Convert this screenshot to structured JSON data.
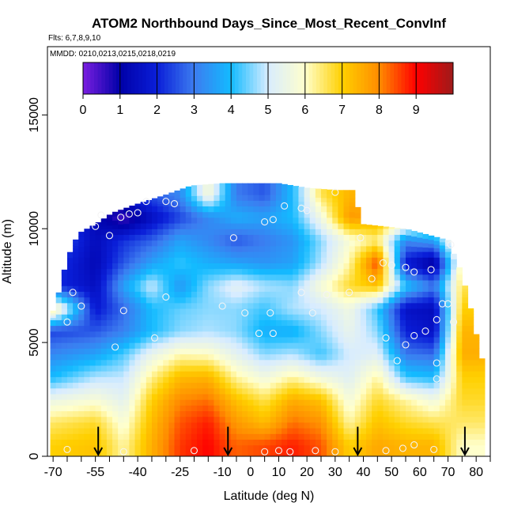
{
  "chart_data": {
    "type": "heatmap",
    "title": "ATOM2 Northbound Days_Since_Most_Recent_ConvInf",
    "subtitle_flights": "Flts: 6,7,8,9,10",
    "subtitle_dates": "MMDD: 0210,0213,0215,0218,0219",
    "xlabel": "Latitude (deg N)",
    "ylabel": "Altitude (m)",
    "xlim": [
      -72,
      85
    ],
    "ylim": [
      0,
      18000
    ],
    "x_ticks": [
      -70,
      -55,
      -40,
      -25,
      -10,
      0,
      10,
      20,
      30,
      40,
      50,
      60,
      70,
      80
    ],
    "x_minor_ticks": [
      -65,
      -60,
      -50,
      -45,
      -35,
      -30,
      -20,
      -15,
      -5,
      5,
      15,
      25,
      35,
      45,
      55,
      65,
      75,
      85
    ],
    "y_ticks": [
      0,
      5000,
      10000,
      15000
    ],
    "colorbar": {
      "min": 0,
      "max": 10,
      "ticks": [
        0,
        1,
        2,
        3,
        4,
        5,
        6,
        7,
        8,
        9
      ],
      "stops": [
        "#7b1fe0",
        "#0000a8",
        "#0a1ed8",
        "#3c7cf0",
        "#13bbff",
        "#d8ecff",
        "#ffffcc",
        "#ffd000",
        "#ff8c00",
        "#ff0000",
        "#9e1a1a"
      ]
    },
    "profile_arrows_lat": [
      -54,
      -8,
      38,
      76
    ],
    "envelope_top": [
      [
        -71,
        6000
      ],
      [
        -68,
        7200
      ],
      [
        -65,
        8700
      ],
      [
        -61,
        9800
      ],
      [
        -55,
        10200
      ],
      [
        -49,
        10700
      ],
      [
        -40,
        11100
      ],
      [
        -30,
        11500
      ],
      [
        -21,
        11900
      ],
      [
        -10,
        12000
      ],
      [
        0,
        12000
      ],
      [
        10,
        12000
      ],
      [
        20,
        11800
      ],
      [
        30,
        11700
      ],
      [
        36,
        11700
      ],
      [
        40,
        10200
      ],
      [
        55,
        10000
      ],
      [
        64,
        9700
      ],
      [
        70,
        9500
      ],
      [
        75,
        8000
      ],
      [
        78,
        6500
      ],
      [
        81,
        4800
      ],
      [
        83,
        3800
      ],
      [
        82,
        2500
      ],
      [
        80,
        1200
      ],
      [
        78,
        400
      ],
      [
        76,
        0
      ]
    ],
    "envelope_bottom_left": [
      -68,
      0
    ],
    "value_bands": [
      {
        "alt": 500,
        "points": [
          [
            -70,
            7
          ],
          [
            -55,
            7.2
          ],
          [
            -45,
            6.2
          ],
          [
            -35,
            7.5
          ],
          [
            -25,
            8.6
          ],
          [
            -15,
            9
          ],
          [
            -5,
            8.3
          ],
          [
            5,
            8.5
          ],
          [
            15,
            8.8
          ],
          [
            25,
            8.4
          ],
          [
            35,
            7
          ],
          [
            45,
            7.6
          ],
          [
            55,
            7.4
          ],
          [
            65,
            7.4
          ],
          [
            75,
            6
          ]
        ]
      },
      {
        "alt": 1500,
        "points": [
          [
            -70,
            6.5
          ],
          [
            -55,
            6.8
          ],
          [
            -45,
            5.8
          ],
          [
            -35,
            7.3
          ],
          [
            -25,
            8.4
          ],
          [
            -15,
            8.8
          ],
          [
            -5,
            7.8
          ],
          [
            5,
            7.3
          ],
          [
            15,
            8.2
          ],
          [
            25,
            7.9
          ],
          [
            35,
            6.2
          ],
          [
            45,
            7.2
          ],
          [
            55,
            6.8
          ],
          [
            65,
            6.6
          ],
          [
            75,
            6.5
          ]
        ]
      },
      {
        "alt": 2500,
        "points": [
          [
            -70,
            5.5
          ],
          [
            -55,
            5.8
          ],
          [
            -45,
            5.3
          ],
          [
            -35,
            7
          ],
          [
            -25,
            8
          ],
          [
            -15,
            8.2
          ],
          [
            -5,
            7.2
          ],
          [
            5,
            6.6
          ],
          [
            15,
            7.5
          ],
          [
            25,
            7.2
          ],
          [
            35,
            5.7
          ],
          [
            45,
            6.8
          ],
          [
            55,
            6.2
          ],
          [
            65,
            5.6
          ],
          [
            75,
            6.8
          ]
        ]
      },
      {
        "alt": 3500,
        "points": [
          [
            -70,
            4
          ],
          [
            -55,
            4.8
          ],
          [
            -45,
            4.9
          ],
          [
            -35,
            6.3
          ],
          [
            -25,
            7.3
          ],
          [
            -15,
            7.4
          ],
          [
            -5,
            6.2
          ],
          [
            5,
            5.6
          ],
          [
            15,
            6.2
          ],
          [
            25,
            5.6
          ],
          [
            35,
            5.2
          ],
          [
            45,
            6.2
          ],
          [
            55,
            4.2
          ],
          [
            65,
            4
          ],
          [
            75,
            7
          ]
        ]
      },
      {
        "alt": 4500,
        "points": [
          [
            -70,
            3.2
          ],
          [
            -55,
            3.6
          ],
          [
            -45,
            4.3
          ],
          [
            -35,
            5.4
          ],
          [
            -25,
            6.1
          ],
          [
            -15,
            6
          ],
          [
            -5,
            5.3
          ],
          [
            5,
            4.6
          ],
          [
            15,
            4.8
          ],
          [
            25,
            4.2
          ],
          [
            35,
            5
          ],
          [
            45,
            5.2
          ],
          [
            55,
            3
          ],
          [
            65,
            2.8
          ],
          [
            75,
            7.5
          ]
        ]
      },
      {
        "alt": 5500,
        "points": [
          [
            -70,
            2.4
          ],
          [
            -55,
            2.6
          ],
          [
            -45,
            3.1
          ],
          [
            -35,
            4
          ],
          [
            -25,
            4.6
          ],
          [
            -15,
            4.8
          ],
          [
            -5,
            4.6
          ],
          [
            5,
            3.8
          ],
          [
            15,
            3.8
          ],
          [
            25,
            4.6
          ],
          [
            35,
            5.4
          ],
          [
            45,
            4.6
          ],
          [
            55,
            2
          ],
          [
            65,
            1.6
          ],
          [
            75,
            7.4
          ]
        ]
      },
      {
        "alt": 6500,
        "points": [
          [
            -70,
            6.6
          ],
          [
            -55,
            1.8
          ],
          [
            -45,
            2.8
          ],
          [
            -35,
            4
          ],
          [
            -25,
            4.4
          ],
          [
            -15,
            4.6
          ],
          [
            -5,
            4.6
          ],
          [
            5,
            4.2
          ],
          [
            15,
            4.8
          ],
          [
            25,
            5
          ],
          [
            35,
            5.6
          ],
          [
            45,
            4.2
          ],
          [
            55,
            1.6
          ],
          [
            65,
            1.4
          ],
          [
            75,
            7
          ]
        ]
      },
      {
        "alt": 7500,
        "points": [
          [
            -70,
            2.2
          ],
          [
            -55,
            1.5
          ],
          [
            -45,
            3.6
          ],
          [
            -35,
            5
          ],
          [
            -25,
            3.4
          ],
          [
            -15,
            4.6
          ],
          [
            -5,
            5.3
          ],
          [
            5,
            4.8
          ],
          [
            15,
            4.6
          ],
          [
            25,
            5.8
          ],
          [
            35,
            6.8
          ],
          [
            45,
            7.2
          ],
          [
            55,
            4.2
          ],
          [
            65,
            3
          ],
          [
            75,
            6.6
          ]
        ]
      },
      {
        "alt": 8500,
        "points": [
          [
            -70,
            2.4
          ],
          [
            -55,
            1.3
          ],
          [
            -45,
            2.6
          ],
          [
            -35,
            3.6
          ],
          [
            -25,
            4.2
          ],
          [
            -15,
            3.8
          ],
          [
            -5,
            3.6
          ],
          [
            5,
            3.4
          ],
          [
            15,
            3.6
          ],
          [
            25,
            4.8
          ],
          [
            35,
            6.2
          ],
          [
            45,
            8.6
          ],
          [
            55,
            1.8
          ],
          [
            65,
            0.8
          ],
          [
            75,
            6.4
          ]
        ]
      },
      {
        "alt": 9500,
        "points": [
          [
            -70,
            3
          ],
          [
            -55,
            1.4
          ],
          [
            -45,
            2.2
          ],
          [
            -35,
            2.7
          ],
          [
            -25,
            3.6
          ],
          [
            -15,
            3.2
          ],
          [
            -5,
            2.6
          ],
          [
            5,
            3
          ],
          [
            15,
            3.4
          ],
          [
            25,
            4.6
          ],
          [
            35,
            5.8
          ],
          [
            45,
            6.4
          ],
          [
            55,
            3.2
          ],
          [
            65,
            3.6
          ],
          [
            75,
            7
          ]
        ]
      },
      {
        "alt": 10500,
        "points": [
          [
            -70,
            3
          ],
          [
            -55,
            1.3
          ],
          [
            -45,
            0.4
          ],
          [
            -35,
            1.5
          ],
          [
            -25,
            2.4
          ],
          [
            -15,
            3.2
          ],
          [
            -5,
            3.8
          ],
          [
            5,
            3.6
          ],
          [
            15,
            4
          ],
          [
            25,
            5.6
          ],
          [
            35,
            7.8
          ],
          [
            45,
            7.6
          ],
          [
            55,
            7
          ],
          [
            65,
            7
          ],
          [
            75,
            7
          ]
        ]
      },
      {
        "alt": 11500,
        "points": [
          [
            -70,
            3
          ],
          [
            -55,
            1.6
          ],
          [
            -45,
            2
          ],
          [
            -35,
            2.6
          ],
          [
            -25,
            3.2
          ],
          [
            -15,
            5.8
          ],
          [
            -5,
            3
          ],
          [
            5,
            2.6
          ],
          [
            15,
            4
          ],
          [
            25,
            6.6
          ],
          [
            35,
            7.4
          ],
          [
            45,
            7.4
          ],
          [
            55,
            7
          ],
          [
            65,
            7
          ],
          [
            75,
            7
          ]
        ]
      }
    ],
    "observation_points": [
      [
        -55,
        10100
      ],
      [
        -53,
        10600
      ],
      [
        -50,
        9700
      ],
      [
        -46,
        10500
      ],
      [
        -43,
        10650
      ],
      [
        -40,
        10700
      ],
      [
        -37,
        11200
      ],
      [
        -30,
        11200
      ],
      [
        -27,
        11100
      ],
      [
        -63,
        7200
      ],
      [
        -60,
        6600
      ],
      [
        -65,
        5900
      ],
      [
        -45,
        6400
      ],
      [
        -48,
        4800
      ],
      [
        -34,
        5200
      ],
      [
        -30,
        7000
      ],
      [
        -10,
        6600
      ],
      [
        -6,
        9600
      ],
      [
        5,
        10300
      ],
      [
        8,
        10400
      ],
      [
        12,
        11000
      ],
      [
        18,
        10900
      ],
      [
        20,
        10800
      ],
      [
        30,
        11600
      ],
      [
        39,
        9600
      ],
      [
        47,
        8500
      ],
      [
        50,
        8400
      ],
      [
        55,
        8300
      ],
      [
        58,
        8100
      ],
      [
        64,
        8200
      ],
      [
        71,
        9300
      ],
      [
        43,
        7800
      ],
      [
        35,
        7200
      ],
      [
        27,
        7100
      ],
      [
        18,
        7200
      ],
      [
        -2,
        6300
      ],
      [
        3,
        5400
      ],
      [
        7,
        6300
      ],
      [
        8,
        5400
      ],
      [
        22,
        6300
      ],
      [
        48,
        5200
      ],
      [
        52,
        4200
      ],
      [
        55,
        4900
      ],
      [
        58,
        5300
      ],
      [
        62,
        5500
      ],
      [
        66,
        6000
      ],
      [
        68,
        6700
      ],
      [
        70,
        6700
      ],
      [
        72,
        5900
      ],
      [
        66,
        4100
      ],
      [
        66,
        3400
      ],
      [
        -65,
        300
      ],
      [
        -45,
        200
      ],
      [
        -20,
        250
      ],
      [
        5,
        200
      ],
      [
        10,
        250
      ],
      [
        14,
        200
      ],
      [
        23,
        250
      ],
      [
        30,
        200
      ],
      [
        48,
        250
      ],
      [
        54,
        350
      ],
      [
        58,
        500
      ],
      [
        65,
        300
      ]
    ]
  }
}
